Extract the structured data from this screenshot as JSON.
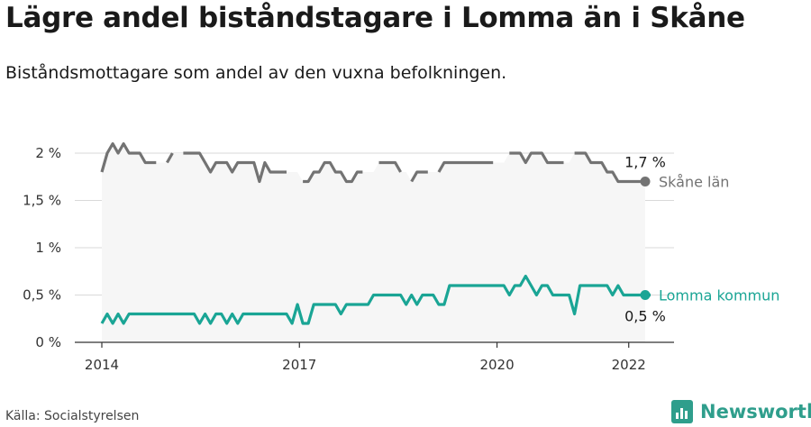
{
  "title": "Lägre andel biståndstagare i Lomma än i Skåne",
  "subtitle": "Biståndsmottagare som andel av den vuxna befolkningen.",
  "source": "Källa: Socialstyrelsen",
  "brand": "Newsworthy",
  "chart_data": {
    "type": "line",
    "x_axis": {
      "ticks": [
        "2014",
        "2017",
        "2020",
        "2022"
      ],
      "start_year": 2014,
      "end_year": 2022.25
    },
    "y_axis": {
      "ticks": [
        "0 %",
        "0,5 %",
        "1 %",
        "1,5 %",
        "2 %"
      ],
      "range": [
        0,
        2
      ]
    },
    "series": [
      {
        "name": "Skåne län",
        "color": "#737373",
        "end_label": "1,7 %",
        "values": [
          1.8,
          2.0,
          2.1,
          2.0,
          2.1,
          2.0,
          2.0,
          2.0,
          1.9,
          1.9,
          1.9,
          null,
          1.9,
          2.0,
          null,
          2.0,
          2.0,
          2.0,
          2.0,
          1.9,
          1.8,
          1.9,
          1.9,
          1.9,
          1.8,
          1.9,
          1.9,
          1.9,
          1.9,
          1.7,
          1.9,
          1.8,
          1.8,
          1.8,
          1.8,
          null,
          null,
          1.7,
          1.7,
          1.8,
          1.8,
          1.9,
          1.9,
          1.8,
          1.8,
          1.7,
          1.7,
          1.8,
          1.8,
          null,
          null,
          1.9,
          1.9,
          1.9,
          1.9,
          1.8,
          null,
          1.7,
          1.8,
          1.8,
          1.8,
          null,
          1.8,
          1.9,
          1.9,
          1.9,
          1.9,
          1.9,
          1.9,
          1.9,
          1.9,
          1.9,
          1.9,
          null,
          null,
          2.0,
          2.0,
          2.0,
          1.9,
          2.0,
          2.0,
          2.0,
          1.9,
          1.9,
          1.9,
          1.9,
          null,
          2.0,
          2.0,
          2.0,
          1.9,
          1.9,
          1.9,
          1.8,
          1.8,
          1.7,
          1.7,
          1.7,
          1.7,
          1.7,
          1.7
        ]
      },
      {
        "name": "Lomma kommun",
        "color": "#1aa595",
        "end_label": "0,5 %",
        "values": [
          0.2,
          0.3,
          0.2,
          0.3,
          0.2,
          0.3,
          0.3,
          0.3,
          0.3,
          0.3,
          0.3,
          0.3,
          0.3,
          0.3,
          0.3,
          0.3,
          0.3,
          0.3,
          0.2,
          0.3,
          0.2,
          0.3,
          0.3,
          0.2,
          0.3,
          0.2,
          0.3,
          0.3,
          0.3,
          0.3,
          0.3,
          0.3,
          0.3,
          0.3,
          0.3,
          0.2,
          0.4,
          0.2,
          0.2,
          0.4,
          0.4,
          0.4,
          0.4,
          0.4,
          0.3,
          0.4,
          0.4,
          0.4,
          0.4,
          0.4,
          0.5,
          0.5,
          0.5,
          0.5,
          0.5,
          0.5,
          0.4,
          0.5,
          0.4,
          0.5,
          0.5,
          0.5,
          0.4,
          0.4,
          0.6,
          0.6,
          0.6,
          0.6,
          0.6,
          0.6,
          0.6,
          0.6,
          0.6,
          0.6,
          0.6,
          0.5,
          0.6,
          0.6,
          0.7,
          0.6,
          0.5,
          0.6,
          0.6,
          0.5,
          0.5,
          0.5,
          0.5,
          0.3,
          0.6,
          0.6,
          0.6,
          0.6,
          0.6,
          0.6,
          0.5,
          0.6,
          0.5,
          0.5,
          0.5,
          0.5,
          0.5,
          0.5
        ]
      }
    ]
  }
}
